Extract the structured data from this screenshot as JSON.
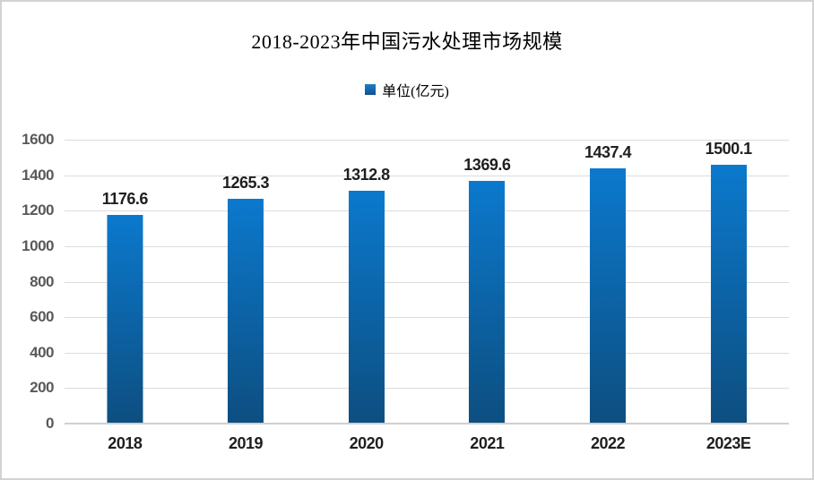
{
  "chart_data": {
    "type": "bar",
    "title": "2018-2023年中国污水处理市场规模",
    "legend": {
      "label": "单位(亿元)",
      "position": "top"
    },
    "categories": [
      "2018",
      "2019",
      "2020",
      "2021",
      "2022",
      "2023E"
    ],
    "values": [
      1176.6,
      1265.3,
      1312.8,
      1369.6,
      1437.4,
      1500.1
    ],
    "value_labels": [
      "1176.6",
      "1265.3",
      "1312.8",
      "1369.6",
      "1437.4",
      "1500.1"
    ],
    "xlabel": "",
    "ylabel": "",
    "ylim": [
      0,
      1600
    ],
    "ytick_step": 200,
    "yticks": [
      0,
      200,
      400,
      600,
      800,
      1000,
      1200,
      1400,
      1600
    ],
    "grid": true,
    "colors": {
      "bar_gradient_top": "#0b79cd",
      "bar_gradient_bottom": "#0d4e80",
      "legend_marker_top": "#1d7ecb",
      "legend_marker_bottom": "#11518c",
      "gridline": "#dcdcdc",
      "axis_line": "#cfcfcf",
      "y_tick_text": "#595959",
      "x_tick_text": "#1f1f1f",
      "value_label_text": "#1f1f1f",
      "title_text": "#000000",
      "canvas_border": "#d2d2d2",
      "background": "#ffffff"
    }
  }
}
